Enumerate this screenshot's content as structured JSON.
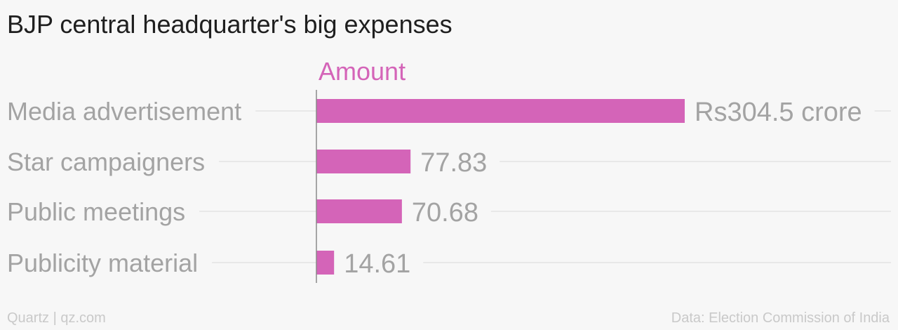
{
  "chart_data": {
    "type": "bar",
    "orientation": "horizontal",
    "title": "BJP central headquarter's big expenses",
    "series": [
      {
        "name": "Amount",
        "values": [
          304.5,
          77.83,
          70.68,
          14.61
        ]
      }
    ],
    "categories": [
      "Media advertisement",
      "Star campaigners",
      "Public meetings",
      "Publicity material"
    ],
    "value_labels": [
      "Rs304.5 crore",
      "77.83",
      "70.68",
      "14.61"
    ],
    "xlim": [
      0,
      304.5
    ],
    "grid": true,
    "colors": {
      "bar": "#d464b8",
      "series_label": "#d464b8",
      "category_label": "#a3a3a3",
      "value_label": "#a3a3a3",
      "gridline": "#e4e4e4",
      "axis": "#8a8a8a"
    }
  },
  "footer": {
    "source_left": "Quartz | qz.com",
    "source_right": "Data: Election Commission of India"
  }
}
